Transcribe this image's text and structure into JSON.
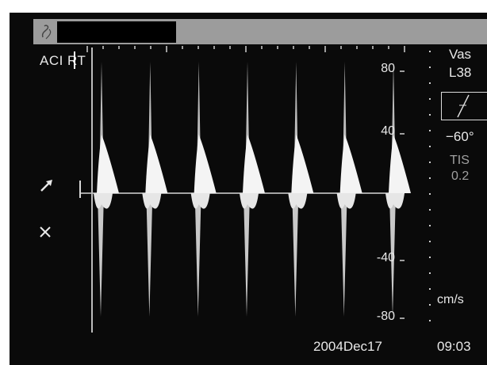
{
  "annotation": {
    "mode_label": "ACI RT"
  },
  "right_panel": {
    "probe_mode": "Vas",
    "probe_name": "L38",
    "angle": "−60°",
    "tis_label": "TIS",
    "tis_value": "0.2"
  },
  "scale": {
    "ticks": [
      "80",
      "40",
      "-40",
      "-80"
    ],
    "units": "cm/s"
  },
  "footer": {
    "date": "2004Dec17",
    "time": "09:03"
  },
  "icons": {
    "logo": "logo-icon",
    "angle_correction": "angle-correction-icon",
    "arrow": "steer-arrow-icon",
    "cross": "cursor-cross-icon"
  },
  "colors": {
    "background": "#0a0a0a",
    "text": "#e8e8e8",
    "dim_text": "#a0a0a0",
    "header_bar": "#9c9c9c"
  },
  "spectral_doppler": {
    "peak_count": 7
  }
}
